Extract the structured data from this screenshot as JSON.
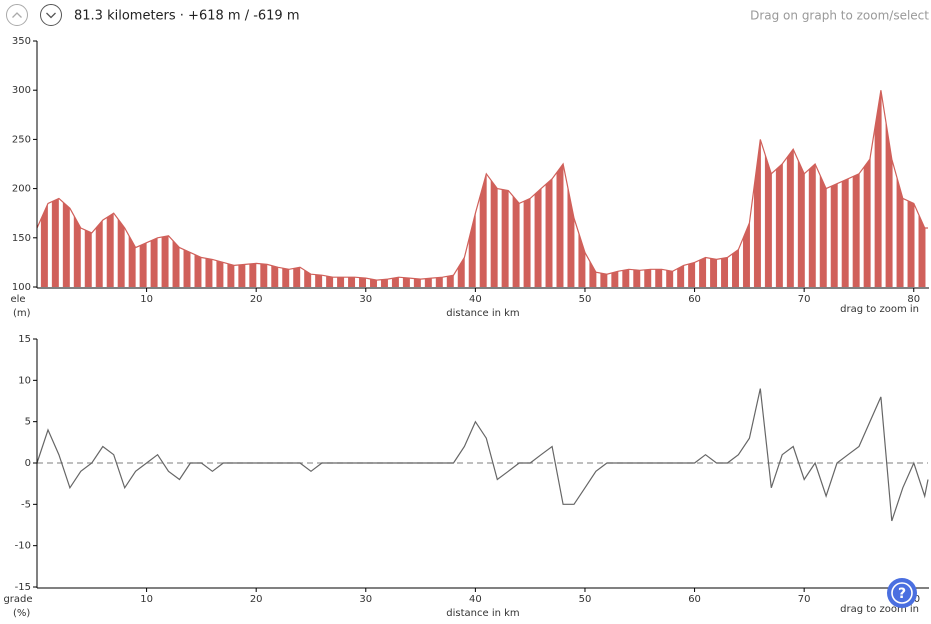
{
  "header": {
    "summary": "81.3 kilometers · +618 m / -619 m",
    "hint": "Drag on graph to zoom/select"
  },
  "help_button": "?",
  "chart_data": [
    {
      "type": "area",
      "ylabel": "ele",
      "yunit": "(m)",
      "xlabel": "distance in km",
      "hint": "drag to zoom in",
      "color": "#d0605a",
      "x": [
        0,
        1,
        2,
        3,
        4,
        5,
        6,
        7,
        8,
        9,
        10,
        11,
        12,
        13,
        14,
        15,
        16,
        17,
        18,
        19,
        20,
        21,
        22,
        23,
        24,
        25,
        26,
        27,
        28,
        29,
        30,
        31,
        32,
        33,
        34,
        35,
        36,
        37,
        38,
        39,
        40,
        41,
        42,
        43,
        44,
        45,
        46,
        47,
        48,
        49,
        50,
        51,
        52,
        53,
        54,
        55,
        56,
        57,
        58,
        59,
        60,
        61,
        62,
        63,
        64,
        65,
        66,
        67,
        68,
        69,
        70,
        71,
        72,
        73,
        74,
        75,
        76,
        77,
        78,
        79,
        80,
        81,
        81.3
      ],
      "values": [
        160,
        185,
        190,
        180,
        160,
        155,
        168,
        175,
        160,
        140,
        145,
        150,
        152,
        140,
        135,
        130,
        128,
        125,
        122,
        123,
        124,
        123,
        120,
        118,
        120,
        113,
        112,
        110,
        110,
        110,
        109,
        107,
        108,
        110,
        109,
        108,
        109,
        110,
        112,
        130,
        175,
        215,
        200,
        198,
        185,
        190,
        200,
        210,
        225,
        170,
        135,
        115,
        113,
        116,
        118,
        117,
        118,
        118,
        116,
        122,
        125,
        130,
        128,
        130,
        138,
        165,
        250,
        215,
        225,
        240,
        215,
        225,
        200,
        205,
        210,
        215,
        230,
        300,
        230,
        190,
        185,
        160,
        160
      ],
      "xlim": [
        0,
        81.3
      ],
      "xticks": [
        10,
        20,
        30,
        40,
        50,
        60,
        70,
        80
      ],
      "ylim": [
        100,
        350
      ],
      "yticks": [
        100,
        150,
        200,
        250,
        300,
        350
      ]
    },
    {
      "type": "line",
      "ylabel": "grade",
      "yunit": "(%)",
      "xlabel": "distance in km",
      "hint": "drag to zoom in",
      "color": "#666666",
      "reference_line": 0,
      "x": [
        0,
        1,
        2,
        3,
        4,
        5,
        6,
        7,
        8,
        9,
        10,
        11,
        12,
        13,
        14,
        15,
        16,
        17,
        18,
        19,
        20,
        21,
        22,
        23,
        24,
        25,
        26,
        27,
        28,
        29,
        30,
        31,
        32,
        33,
        34,
        35,
        36,
        37,
        38,
        39,
        40,
        41,
        42,
        43,
        44,
        45,
        46,
        47,
        48,
        49,
        50,
        51,
        52,
        53,
        54,
        55,
        56,
        57,
        58,
        59,
        60,
        61,
        62,
        63,
        64,
        65,
        66,
        67,
        68,
        69,
        70,
        71,
        72,
        73,
        74,
        75,
        76,
        77,
        78,
        79,
        80,
        81,
        81.3
      ],
      "values": [
        0,
        4,
        1,
        -3,
        -1,
        0,
        2,
        1,
        -3,
        -1,
        0,
        1,
        -1,
        -2,
        0,
        0,
        -1,
        0,
        0,
        0,
        0,
        0,
        0,
        0,
        0,
        -1,
        0,
        0,
        0,
        0,
        0,
        0,
        0,
        0,
        0,
        0,
        0,
        0,
        0,
        2,
        5,
        3,
        -2,
        -1,
        0,
        0,
        1,
        2,
        -5,
        -5,
        -3,
        -1,
        0,
        0,
        0,
        0,
        0,
        0,
        0,
        0,
        0,
        1,
        0,
        0,
        1,
        3,
        9,
        -3,
        1,
        2,
        -2,
        0,
        -4,
        0,
        1,
        2,
        5,
        8,
        -7,
        -3,
        0,
        -4,
        -2
      ],
      "xlim": [
        0,
        81.3
      ],
      "xticks": [
        10,
        20,
        30,
        40,
        50,
        60,
        70,
        80
      ],
      "ylim": [
        -15,
        15
      ],
      "yticks": [
        -15,
        -10,
        -5,
        0,
        5,
        10,
        15
      ]
    }
  ]
}
